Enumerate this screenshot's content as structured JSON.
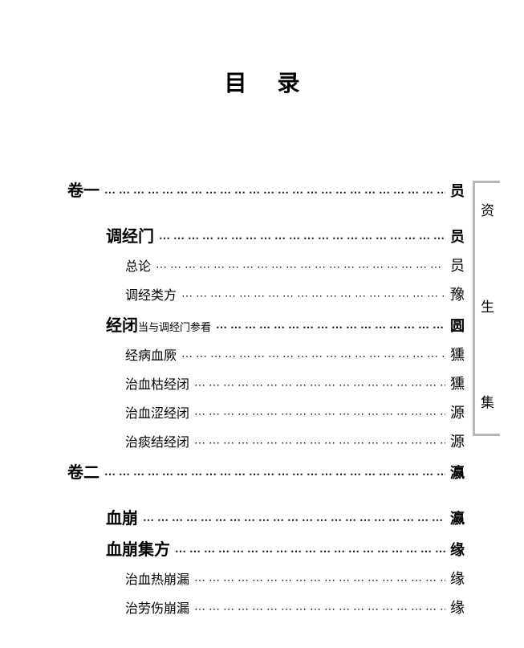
{
  "title": "目录",
  "side_tab": {
    "c1": "资",
    "c2": "生",
    "c3": "集"
  },
  "entries": [
    {
      "level": "vol",
      "label": "卷一",
      "note": "",
      "page": "员"
    },
    {
      "level": "h1",
      "label": "调经门",
      "note": "",
      "page": "员"
    },
    {
      "level": "h2",
      "label": "总论",
      "note": "",
      "page": "员"
    },
    {
      "level": "h2",
      "label": "调经类方",
      "note": "",
      "page": "豫"
    },
    {
      "level": "h1",
      "label": "经闭",
      "note": "当与调经门参看",
      "page": "圆"
    },
    {
      "level": "h2",
      "label": "经病血厥",
      "note": "",
      "page": "獯"
    },
    {
      "level": "h2",
      "label": "治血枯经闭",
      "note": "",
      "page": "獯"
    },
    {
      "level": "h2",
      "label": "治血涩经闭",
      "note": "",
      "page": "源"
    },
    {
      "level": "h2",
      "label": "治痰结经闭",
      "note": "",
      "page": "源"
    },
    {
      "level": "vol",
      "label": "卷二",
      "note": "",
      "page": "瀛"
    },
    {
      "level": "h1",
      "label": "血崩",
      "note": "",
      "page": "瀛"
    },
    {
      "level": "h1",
      "label": "血崩集方",
      "note": "",
      "page": "缘"
    },
    {
      "level": "h2",
      "label": "治血热崩漏",
      "note": "",
      "page": "缘"
    },
    {
      "level": "h2",
      "label": "治劳伤崩漏",
      "note": "",
      "page": "缘"
    }
  ]
}
